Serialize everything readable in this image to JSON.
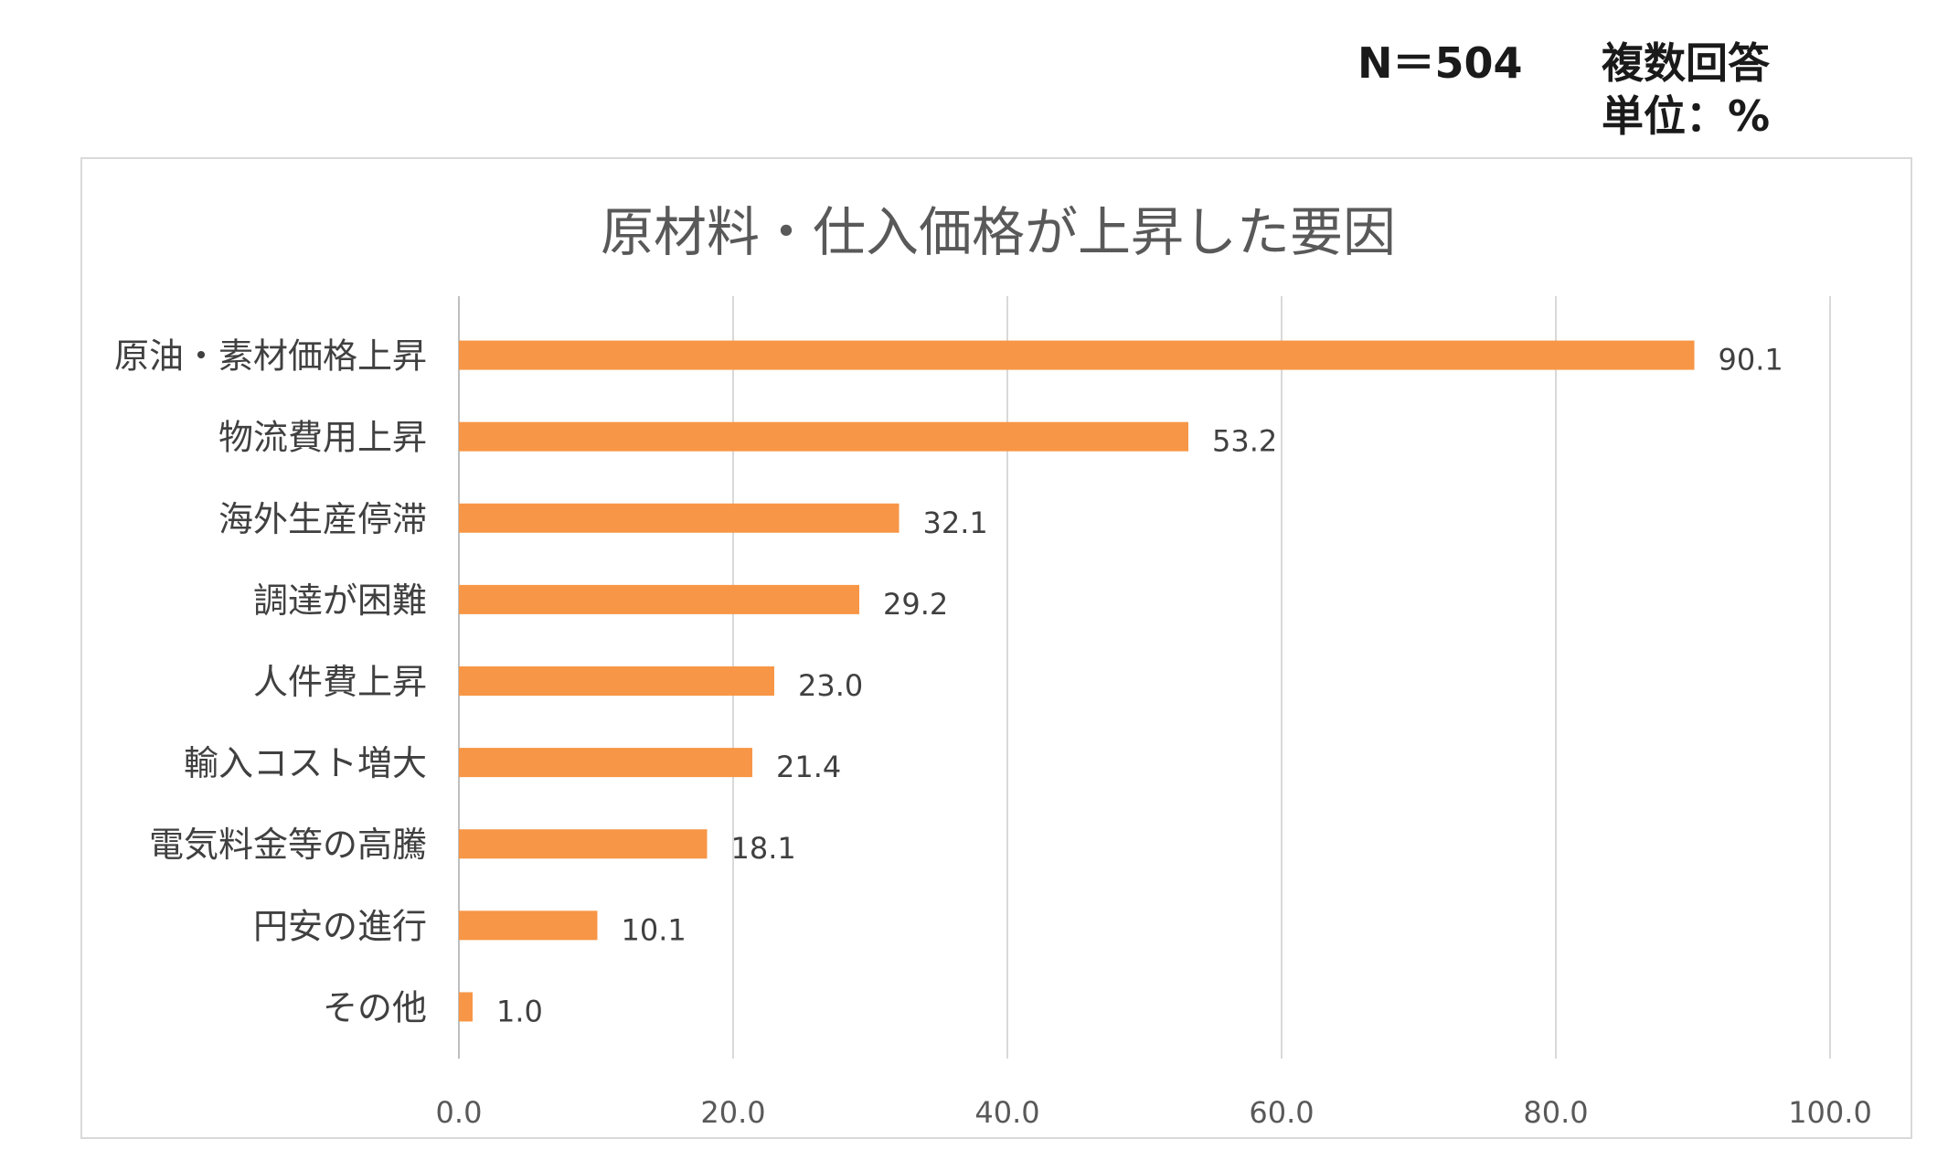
{
  "header": {
    "n_label": "N＝504",
    "multi_label": "複数回答",
    "unit_label": "単位：%"
  },
  "chart_data": {
    "type": "bar",
    "orientation": "horizontal",
    "title": "原材料・仕入価格が上昇した要因",
    "categories": [
      "原油・素材価格上昇",
      "物流費用上昇",
      "海外生産停滞",
      "調達が困難",
      "人件費上昇",
      "輸入コスト増大",
      "電気料金等の高騰",
      "円安の進行",
      "その他"
    ],
    "values": [
      90.1,
      53.2,
      32.1,
      29.2,
      23.0,
      21.4,
      18.1,
      10.1,
      1.0
    ],
    "value_labels": [
      "90.1",
      "53.2",
      "32.1",
      "29.2",
      "23.0",
      "21.4",
      "18.1",
      "10.1",
      "1.0"
    ],
    "xlim": [
      0,
      100
    ],
    "x_ticks": [
      "0.0",
      "20.0",
      "40.0",
      "60.0",
      "80.0",
      "100.0"
    ],
    "grid": true,
    "bar_color": "#F79646",
    "grid_color": "#d9d9d9"
  }
}
